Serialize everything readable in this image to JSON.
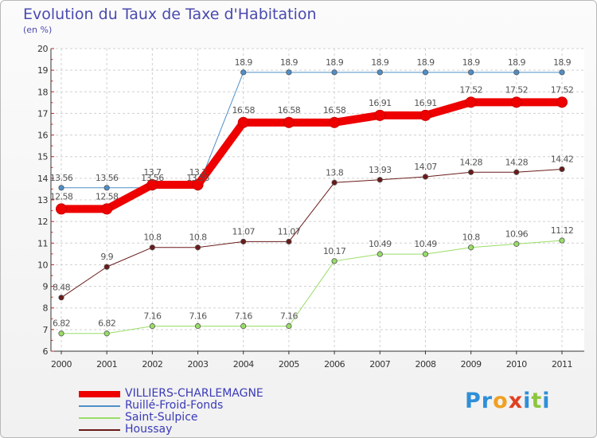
{
  "title": "Evolution du Taux de Taxe d'Habitation",
  "subtitle": "(en %)",
  "logo": {
    "letters": [
      {
        "ch": "P",
        "color": "#2f8fd8"
      },
      {
        "ch": "r",
        "color": "#2f8fd8"
      },
      {
        "ch": "o",
        "color": "#f0a020"
      },
      {
        "ch": "x",
        "color": "#e04020"
      },
      {
        "ch": "i",
        "color": "#2f8fd8"
      },
      {
        "ch": "t",
        "color": "#8cc63f"
      },
      {
        "ch": "i",
        "color": "#2f8fd8"
      }
    ]
  },
  "chart_data": {
    "type": "line",
    "title": "Evolution du Taux de Taxe d'Habitation",
    "subtitle": "(en %)",
    "xlabel": "",
    "ylabel": "",
    "ylim": [
      6,
      20
    ],
    "yticks": [
      6,
      7,
      8,
      9,
      10,
      11,
      12,
      13,
      14,
      15,
      16,
      17,
      18,
      19,
      20
    ],
    "grid": true,
    "legend_position": "bottom-left",
    "x": [
      "2000",
      "2001",
      "2002",
      "2003",
      "2004",
      "2005",
      "2006",
      "2007",
      "2008",
      "2009",
      "2010",
      "2011"
    ],
    "series": [
      {
        "name": "VILLIERS-CHARLEMAGNE",
        "color": "#ee0000",
        "width": 10,
        "values": [
          12.58,
          12.58,
          13.7,
          13.7,
          16.58,
          16.58,
          16.58,
          16.91,
          16.91,
          17.52,
          17.52,
          17.52
        ],
        "labels": [
          "12.58",
          "12.58",
          "13.7",
          "13.7",
          "16.58",
          "16.58",
          "16.58",
          "16.91",
          "16.91",
          "17.52",
          "17.52",
          "17.52"
        ]
      },
      {
        "name": "Ruillé-Froid-Fonds",
        "color": "#4f8fc8",
        "width": 1,
        "values": [
          13.56,
          13.56,
          13.56,
          13.56,
          18.9,
          18.9,
          18.9,
          18.9,
          18.9,
          18.9,
          18.9,
          18.9
        ],
        "labels": [
          "13.56",
          "13.56",
          "13.56",
          "13.56",
          "18.9",
          "18.9",
          "18.9",
          "18.9",
          "18.9",
          "18.9",
          "18.9",
          "18.9"
        ]
      },
      {
        "name": "Saint-Sulpice",
        "color": "#99dd66",
        "width": 1,
        "values": [
          6.82,
          6.82,
          7.16,
          7.16,
          7.16,
          7.16,
          10.17,
          10.49,
          10.49,
          10.8,
          10.96,
          11.12
        ],
        "labels": [
          "6.82",
          "6.82",
          "7.16",
          "7.16",
          "7.16",
          "7.16",
          "10.17",
          "10.49",
          "10.49",
          "10.8",
          "10.96",
          "11.12"
        ]
      },
      {
        "name": "Houssay",
        "color": "#6a1a1a",
        "width": 1,
        "values": [
          8.48,
          9.9,
          10.8,
          10.8,
          11.07,
          11.07,
          13.8,
          13.93,
          14.07,
          14.28,
          14.28,
          14.42
        ],
        "labels": [
          "8.48",
          "9.9",
          "10.8",
          "10.8",
          "11.07",
          "11.07",
          "13.8",
          "13.93",
          "14.07",
          "14.28",
          "14.28",
          "14.42"
        ]
      }
    ]
  }
}
